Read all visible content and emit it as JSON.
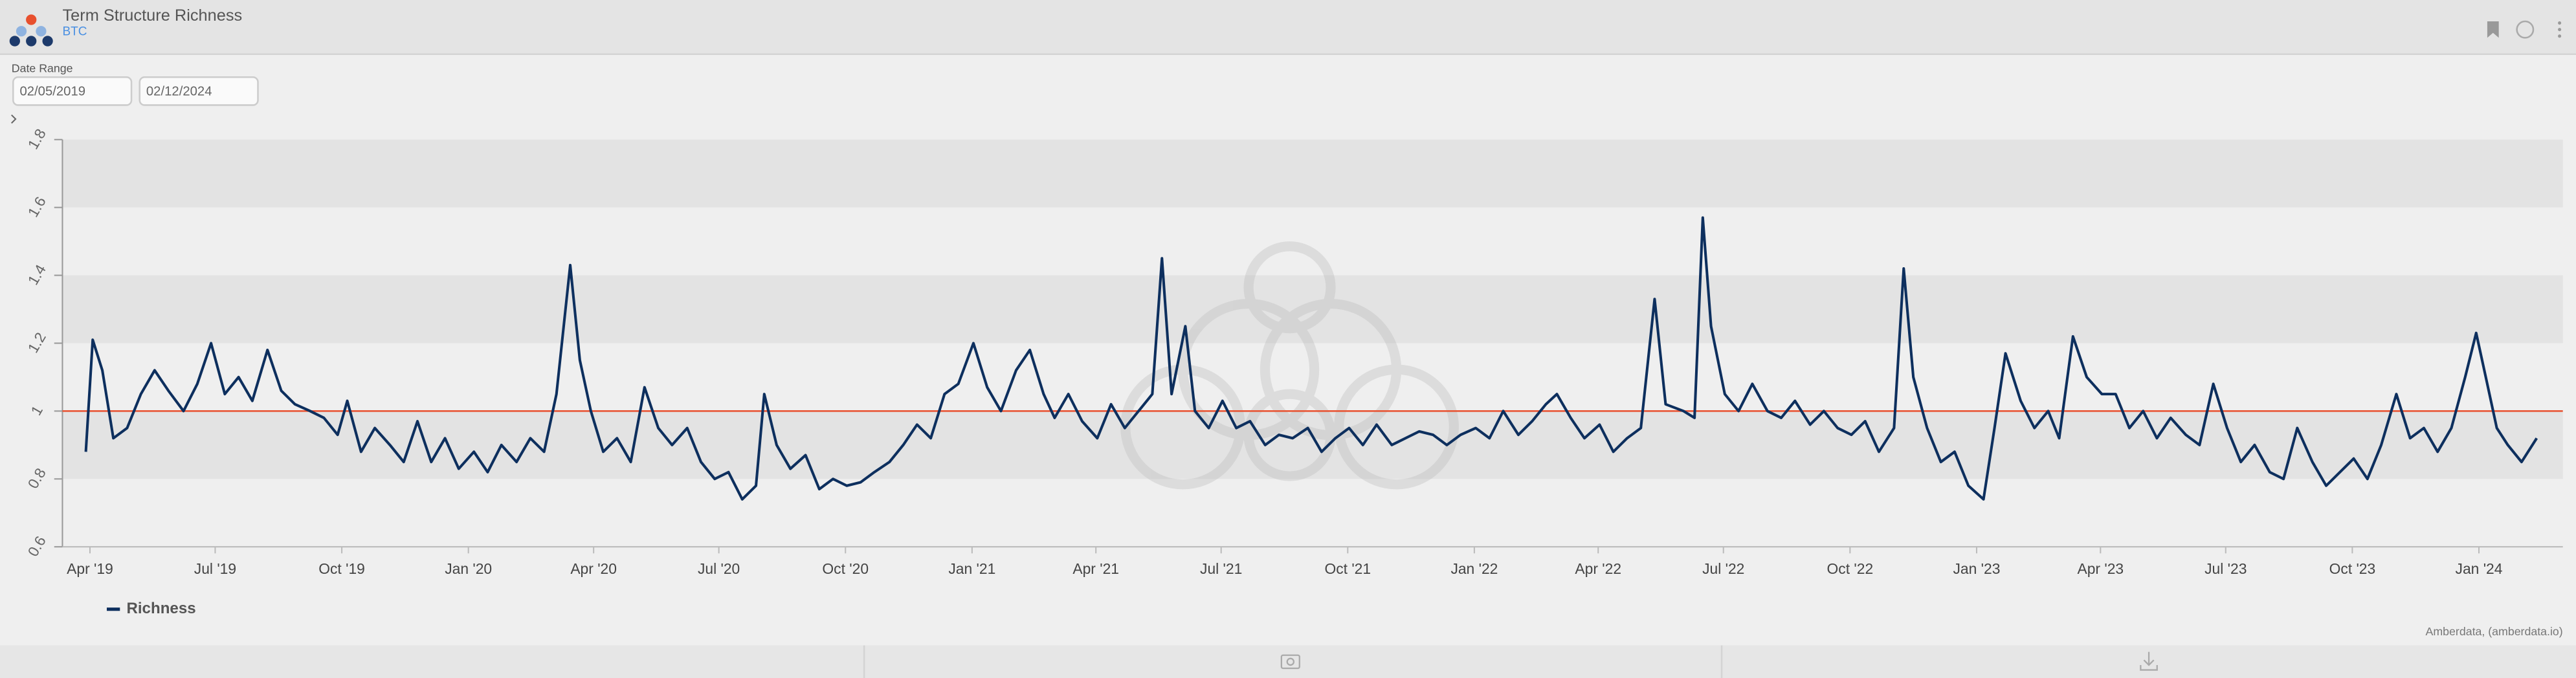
{
  "header": {
    "title": "Term Structure Richness",
    "subtitle": "BTC"
  },
  "date_range": {
    "label": "Date Range",
    "start": "02/05/2019",
    "end": "02/12/2024"
  },
  "credits": "Amberdata, (amberdata.io)",
  "chart_data": {
    "type": "line",
    "x": [
      "2019-03-29",
      "2019-04-03",
      "2019-04-10",
      "2019-04-18",
      "2019-04-28",
      "2019-05-08",
      "2019-05-18",
      "2019-05-28",
      "2019-06-08",
      "2019-06-18",
      "2019-06-28",
      "2019-07-08",
      "2019-07-18",
      "2019-07-28",
      "2019-08-08",
      "2019-08-18",
      "2019-08-28",
      "2019-09-08",
      "2019-09-18",
      "2019-09-28",
      "2019-10-05",
      "2019-10-15",
      "2019-10-25",
      "2019-11-05",
      "2019-11-15",
      "2019-11-25",
      "2019-12-05",
      "2019-12-15",
      "2019-12-25",
      "2020-01-05",
      "2020-01-15",
      "2020-01-25",
      "2020-02-05",
      "2020-02-15",
      "2020-02-25",
      "2020-03-05",
      "2020-03-15",
      "2020-03-22",
      "2020-03-30",
      "2020-04-08",
      "2020-04-18",
      "2020-04-28",
      "2020-05-08",
      "2020-05-18",
      "2020-05-28",
      "2020-06-08",
      "2020-06-18",
      "2020-06-28",
      "2020-07-08",
      "2020-07-18",
      "2020-07-28",
      "2020-08-03",
      "2020-08-12",
      "2020-08-22",
      "2020-09-02",
      "2020-09-12",
      "2020-09-22",
      "2020-10-02",
      "2020-10-12",
      "2020-10-22",
      "2020-11-02",
      "2020-11-12",
      "2020-11-22",
      "2020-12-02",
      "2020-12-12",
      "2020-12-22",
      "2021-01-02",
      "2021-01-12",
      "2021-01-22",
      "2021-02-02",
      "2021-02-12",
      "2021-02-22",
      "2021-03-02",
      "2021-03-12",
      "2021-03-22",
      "2021-04-02",
      "2021-04-12",
      "2021-04-22",
      "2021-05-02",
      "2021-05-12",
      "2021-05-19",
      "2021-05-26",
      "2021-06-05",
      "2021-06-12",
      "2021-06-22",
      "2021-07-02",
      "2021-07-12",
      "2021-07-22",
      "2021-08-02",
      "2021-08-12",
      "2021-08-22",
      "2021-09-02",
      "2021-09-12",
      "2021-09-22",
      "2021-10-02",
      "2021-10-12",
      "2021-10-22",
      "2021-11-02",
      "2021-11-12",
      "2021-11-22",
      "2021-12-02",
      "2021-12-12",
      "2021-12-22",
      "2022-01-02",
      "2022-01-12",
      "2022-01-22",
      "2022-02-02",
      "2022-02-12",
      "2022-02-22",
      "2022-03-02",
      "2022-03-12",
      "2022-03-22",
      "2022-04-02",
      "2022-04-12",
      "2022-04-22",
      "2022-05-02",
      "2022-05-12",
      "2022-05-20",
      "2022-06-02",
      "2022-06-10",
      "2022-06-16",
      "2022-06-22",
      "2022-07-02",
      "2022-07-12",
      "2022-07-22",
      "2022-08-02",
      "2022-08-12",
      "2022-08-22",
      "2022-09-02",
      "2022-09-12",
      "2022-09-22",
      "2022-10-02",
      "2022-10-12",
      "2022-10-22",
      "2022-11-02",
      "2022-11-09",
      "2022-11-16",
      "2022-11-26",
      "2022-12-06",
      "2022-12-16",
      "2022-12-26",
      "2023-01-06",
      "2023-01-14",
      "2023-01-22",
      "2023-02-02",
      "2023-02-12",
      "2023-02-22",
      "2023-03-02",
      "2023-03-12",
      "2023-03-22",
      "2023-04-02",
      "2023-04-12",
      "2023-04-22",
      "2023-05-02",
      "2023-05-12",
      "2023-05-22",
      "2023-06-02",
      "2023-06-12",
      "2023-06-22",
      "2023-07-02",
      "2023-07-12",
      "2023-07-22",
      "2023-08-02",
      "2023-08-12",
      "2023-08-22",
      "2023-09-02",
      "2023-09-12",
      "2023-09-22",
      "2023-10-02",
      "2023-10-12",
      "2023-10-22",
      "2023-11-02",
      "2023-11-12",
      "2023-11-22",
      "2023-12-02",
      "2023-12-12",
      "2023-12-22",
      "2023-12-30",
      "2024-01-06",
      "2024-01-14",
      "2024-01-22",
      "2024-02-01",
      "2024-02-12"
    ],
    "series": [
      {
        "name": "Richness",
        "color": "#0d2f5e",
        "values": [
          0.88,
          1.21,
          1.12,
          0.92,
          0.95,
          1.05,
          1.12,
          1.06,
          1.0,
          1.08,
          1.2,
          1.05,
          1.1,
          1.03,
          1.18,
          1.06,
          1.02,
          1.0,
          0.98,
          0.93,
          1.03,
          0.88,
          0.95,
          0.9,
          0.85,
          0.97,
          0.85,
          0.92,
          0.83,
          0.88,
          0.82,
          0.9,
          0.85,
          0.92,
          0.88,
          1.05,
          1.43,
          1.15,
          1.0,
          0.88,
          0.92,
          0.85,
          1.07,
          0.95,
          0.9,
          0.95,
          0.85,
          0.8,
          0.82,
          0.74,
          0.78,
          1.05,
          0.9,
          0.83,
          0.87,
          0.77,
          0.8,
          0.78,
          0.79,
          0.82,
          0.85,
          0.9,
          0.96,
          0.92,
          1.05,
          1.08,
          1.2,
          1.07,
          1.0,
          1.12,
          1.18,
          1.05,
          0.98,
          1.05,
          0.97,
          0.92,
          1.02,
          0.95,
          1.0,
          1.05,
          1.45,
          1.05,
          1.25,
          1.0,
          0.95,
          1.03,
          0.95,
          0.97,
          0.9,
          0.93,
          0.92,
          0.95,
          0.88,
          0.92,
          0.95,
          0.9,
          0.96,
          0.9,
          0.92,
          0.94,
          0.93,
          0.9,
          0.93,
          0.95,
          0.92,
          1.0,
          0.93,
          0.97,
          1.02,
          1.05,
          0.98,
          0.92,
          0.96,
          0.88,
          0.92,
          0.95,
          1.33,
          1.02,
          1.0,
          0.98,
          1.57,
          1.25,
          1.05,
          1.0,
          1.08,
          1.0,
          0.98,
          1.03,
          0.96,
          1.0,
          0.95,
          0.93,
          0.97,
          0.88,
          0.95,
          1.42,
          1.1,
          0.95,
          0.85,
          0.88,
          0.78,
          0.74,
          0.95,
          1.17,
          1.03,
          0.95,
          1.0,
          0.92,
          1.22,
          1.1,
          1.05,
          1.05,
          0.95,
          1.0,
          0.92,
          0.98,
          0.93,
          0.9,
          1.08,
          0.95,
          0.85,
          0.9,
          0.82,
          0.8,
          0.95,
          0.85,
          0.78,
          0.82,
          0.86,
          0.8,
          0.9,
          1.05,
          0.92,
          0.95,
          0.88,
          0.95,
          1.1,
          1.23,
          1.1,
          0.95,
          0.9,
          0.85,
          0.92
        ]
      }
    ],
    "xlim": [
      "2019-03-12",
      "2024-03-02"
    ],
    "xticks": [
      {
        "value": "2019-04-01",
        "label": "Apr '19"
      },
      {
        "value": "2019-07-01",
        "label": "Jul '19"
      },
      {
        "value": "2019-10-01",
        "label": "Oct '19"
      },
      {
        "value": "2020-01-01",
        "label": "Jan '20"
      },
      {
        "value": "2020-04-01",
        "label": "Apr '20"
      },
      {
        "value": "2020-07-01",
        "label": "Jul '20"
      },
      {
        "value": "2020-10-01",
        "label": "Oct '20"
      },
      {
        "value": "2021-01-01",
        "label": "Jan '21"
      },
      {
        "value": "2021-04-01",
        "label": "Apr '21"
      },
      {
        "value": "2021-07-01",
        "label": "Jul '21"
      },
      {
        "value": "2021-10-01",
        "label": "Oct '21"
      },
      {
        "value": "2022-01-01",
        "label": "Jan '22"
      },
      {
        "value": "2022-04-01",
        "label": "Apr '22"
      },
      {
        "value": "2022-07-01",
        "label": "Jul '22"
      },
      {
        "value": "2022-10-01",
        "label": "Oct '22"
      },
      {
        "value": "2023-01-01",
        "label": "Jan '23"
      },
      {
        "value": "2023-04-01",
        "label": "Apr '23"
      },
      {
        "value": "2023-07-01",
        "label": "Jul '23"
      },
      {
        "value": "2023-10-01",
        "label": "Oct '23"
      },
      {
        "value": "2024-01-01",
        "label": "Jan '24"
      }
    ],
    "ylim": [
      0.6,
      1.8
    ],
    "yticks": [
      0.6,
      0.8,
      1,
      1.2,
      1.4,
      1.6,
      1.8
    ],
    "reference_line": {
      "value": 1,
      "color": "#e8502e"
    },
    "legend": "bottom-left"
  }
}
